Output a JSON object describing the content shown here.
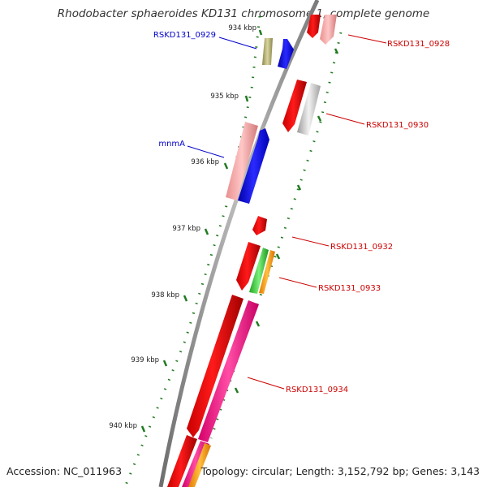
{
  "title": "Rhodobacter sphaeroides KD131 chromosome 1, complete genome",
  "footer": {
    "accession": "Accession: NC_011963",
    "stats": "Topology: circular; Length: 3,152,792 bp; Genes: 3,143"
  },
  "colors": {
    "backbone": "#999999",
    "ticks": "#207a20",
    "label_forward": "#0000cc",
    "label_reverse": "#cc0000"
  },
  "scale_labels": [
    "934 kbp",
    "935 kbp",
    "936 kbp",
    "937 kbp",
    "938 kbp",
    "939 kbp",
    "940 kbp"
  ],
  "gene_labels": [
    {
      "text": "RSKD131_0929",
      "strand": "forward"
    },
    {
      "text": "RSKD131_0928",
      "strand": "reverse"
    },
    {
      "text": "RSKD131_0930",
      "strand": "reverse"
    },
    {
      "text": "mnmA",
      "strand": "forward"
    },
    {
      "text": "RSKD131_0932",
      "strand": "reverse"
    },
    {
      "text": "RSKD131_0933",
      "strand": "reverse"
    },
    {
      "text": "RSKD131_0934",
      "strand": "reverse"
    }
  ]
}
